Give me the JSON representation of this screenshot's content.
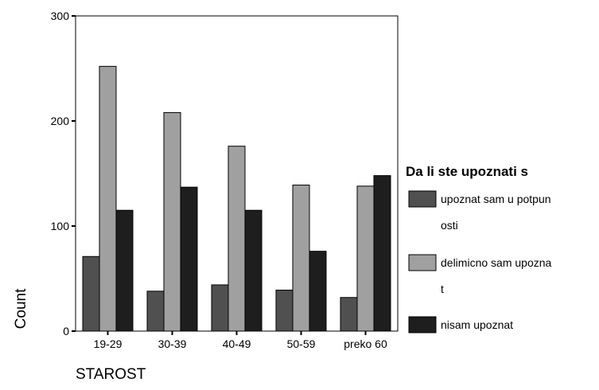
{
  "chart_data": {
    "type": "bar",
    "categories": [
      "19-29",
      "30-39",
      "40-49",
      "50-59",
      "preko 60"
    ],
    "series": [
      {
        "name": "upoznat sam u potpun\nosti",
        "values": [
          71,
          38,
          44,
          39,
          32
        ],
        "color": "#505050"
      },
      {
        "name": "delimicno sam upozna\nt",
        "values": [
          252,
          208,
          176,
          139,
          138
        ],
        "color": "#a0a0a0"
      },
      {
        "name": "nisam upoznat",
        "values": [
          115,
          137,
          115,
          76,
          148
        ],
        "color": "#1e1e1e"
      }
    ],
    "xlabel": "STAROST",
    "ylabel": "Count",
    "legend_title": "Da li ste upoznati s",
    "ylim": [
      0,
      300
    ],
    "yticks": [
      0,
      100,
      200,
      300
    ],
    "grid": false,
    "legend_position": "right"
  }
}
